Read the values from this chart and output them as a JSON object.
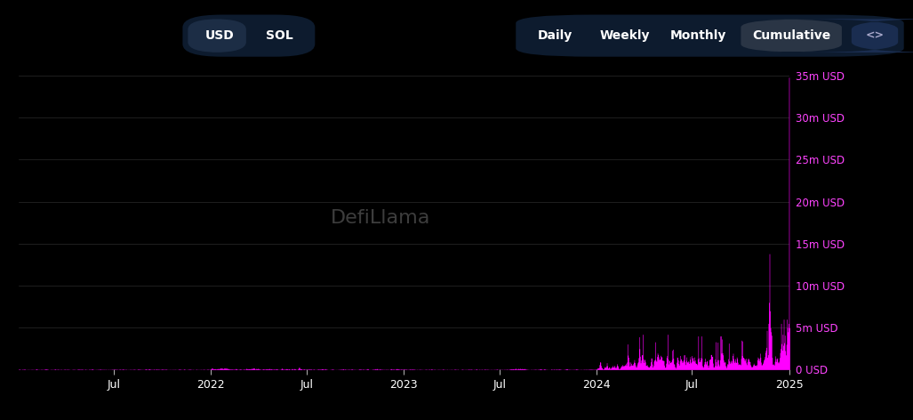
{
  "background_color": "#000000",
  "fill_color": "#ff00ff",
  "line_color": "#ff00ff",
  "grid_color": "#2a2a2a",
  "tick_label_color": "#ff44ff",
  "x_tick_labels": [
    "Jul",
    "2022",
    "Jul",
    "2023",
    "Jul",
    "2024",
    "Jul",
    "2025"
  ],
  "y_tick_labels": [
    "0 USD",
    "5m USD",
    "10m USD",
    "15m USD",
    "20m USD",
    "25m USD",
    "30m USD",
    "35m USD"
  ],
  "y_tick_values": [
    0,
    5000000,
    10000000,
    15000000,
    20000000,
    25000000,
    30000000,
    35000000
  ],
  "ylim": [
    0,
    36000000
  ],
  "watermark_text": "DefiLlama",
  "btn_left_bg": "#0d1b2e",
  "btn_usd_bg": "#1c2d45",
  "btn_right_bg": "#0d1b2e",
  "btn_cumul_bg": "#2a3545",
  "btn_code_bg": "#1a2d50"
}
